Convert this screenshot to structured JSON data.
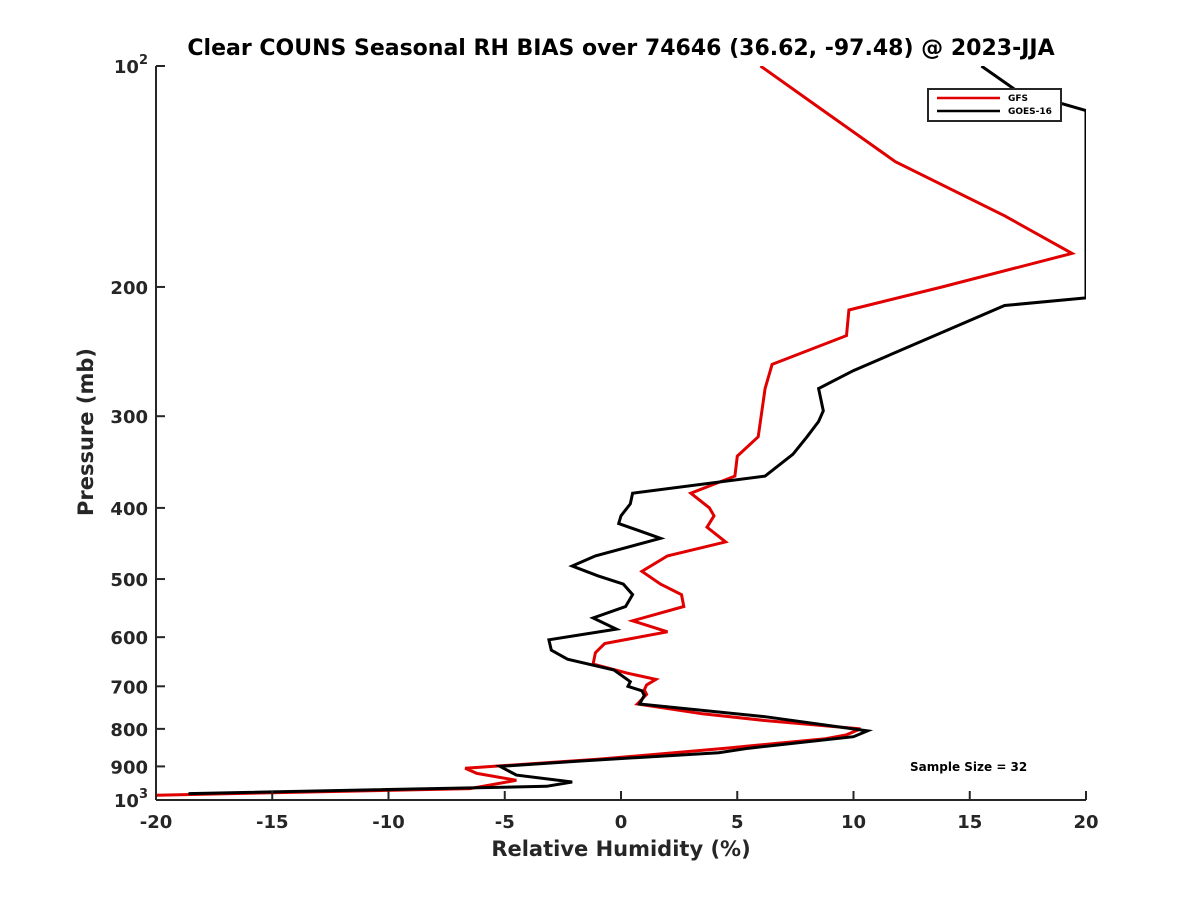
{
  "chart_data": {
    "type": "line",
    "title": "Clear COUNS Seasonal RH BIAS over 74646 (36.62, -97.48) @ 2023-JJA",
    "xlabel": "Relative Humidity (%)",
    "ylabel": "Pressure (mb)",
    "xlim": [
      -20,
      20
    ],
    "ylim": [
      100,
      1000
    ],
    "y_scale": "log",
    "y_reversed": true,
    "x_ticks": [
      "-20",
      "-15",
      "-10",
      "-5",
      "0",
      "5",
      "10",
      "15",
      "20"
    ],
    "y_ticks": [
      {
        "value": 100,
        "label": "10",
        "sup": "2"
      },
      {
        "value": 200,
        "label": "200",
        "sup": ""
      },
      {
        "value": 300,
        "label": "300",
        "sup": ""
      },
      {
        "value": 400,
        "label": "400",
        "sup": ""
      },
      {
        "value": 500,
        "label": "500",
        "sup": ""
      },
      {
        "value": 600,
        "label": "600",
        "sup": ""
      },
      {
        "value": 700,
        "label": "700",
        "sup": ""
      },
      {
        "value": 800,
        "label": "800",
        "sup": ""
      },
      {
        "value": 900,
        "label": "900",
        "sup": ""
      },
      {
        "value": 1000,
        "label": "10",
        "sup": "3"
      }
    ],
    "grid": false,
    "legend_position": "top-right",
    "annotation": "Sample Size = 32",
    "series": [
      {
        "name": "GFS",
        "color": "#e00000",
        "points": [
          [
            6.0,
            100
          ],
          [
            8.7,
            115
          ],
          [
            11.8,
            135
          ],
          [
            16.5,
            160
          ],
          [
            19.4,
            180
          ],
          [
            13.8,
            200
          ],
          [
            9.8,
            215
          ],
          [
            9.7,
            233
          ],
          [
            6.5,
            255
          ],
          [
            6.2,
            275
          ],
          [
            5.9,
            320
          ],
          [
            5.0,
            340
          ],
          [
            4.9,
            362
          ],
          [
            3.0,
            382
          ],
          [
            3.8,
            400
          ],
          [
            4.0,
            410
          ],
          [
            3.7,
            425
          ],
          [
            4.5,
            445
          ],
          [
            2.0,
            465
          ],
          [
            0.9,
            488
          ],
          [
            1.7,
            508
          ],
          [
            2.6,
            525
          ],
          [
            2.7,
            545
          ],
          [
            0.5,
            570
          ],
          [
            2.0,
            590
          ],
          [
            -0.7,
            612
          ],
          [
            -1.1,
            630
          ],
          [
            -1.2,
            653
          ],
          [
            0.3,
            672
          ],
          [
            1.5,
            685
          ],
          [
            1.1,
            697
          ],
          [
            1.0,
            708
          ],
          [
            1.1,
            718
          ],
          [
            0.7,
            740
          ],
          [
            3.5,
            763
          ],
          [
            6.3,
            780
          ],
          [
            10.3,
            800
          ],
          [
            9.7,
            815
          ],
          [
            8.8,
            825
          ],
          [
            4.5,
            850
          ],
          [
            -1.0,
            880
          ],
          [
            -6.7,
            905
          ],
          [
            -6.2,
            920
          ],
          [
            -4.5,
            940
          ],
          [
            -6.5,
            965
          ],
          [
            -20.0,
            985
          ]
        ]
      },
      {
        "name": "GOES-16",
        "color": "#000000",
        "points": [
          [
            15.5,
            100
          ],
          [
            17.0,
            108
          ],
          [
            20.0,
            115
          ],
          [
            20.0,
            207
          ],
          [
            16.5,
            212
          ],
          [
            13.9,
            230
          ],
          [
            10.0,
            260
          ],
          [
            8.5,
            275
          ],
          [
            8.7,
            295
          ],
          [
            8.5,
            305
          ],
          [
            8.0,
            320
          ],
          [
            7.4,
            338
          ],
          [
            6.2,
            362
          ],
          [
            0.5,
            382
          ],
          [
            0.4,
            395
          ],
          [
            0.0,
            410
          ],
          [
            -0.1,
            420
          ],
          [
            1.7,
            440
          ],
          [
            -1.1,
            465
          ],
          [
            -2.1,
            480
          ],
          [
            -1.0,
            495
          ],
          [
            0.1,
            508
          ],
          [
            0.5,
            525
          ],
          [
            0.2,
            545
          ],
          [
            -1.2,
            565
          ],
          [
            -0.2,
            585
          ],
          [
            -3.1,
            605
          ],
          [
            -3.0,
            625
          ],
          [
            -2.3,
            643
          ],
          [
            -0.3,
            665
          ],
          [
            0.4,
            690
          ],
          [
            0.3,
            700
          ],
          [
            0.9,
            710
          ],
          [
            1.0,
            720
          ],
          [
            0.8,
            740
          ],
          [
            6.2,
            770
          ],
          [
            10.6,
            805
          ],
          [
            10.0,
            820
          ],
          [
            5.5,
            850
          ],
          [
            4.2,
            862
          ],
          [
            -1.8,
            885
          ],
          [
            -5.2,
            900
          ],
          [
            -4.5,
            925
          ],
          [
            -2.1,
            945
          ],
          [
            -3.2,
            958
          ],
          [
            -18.6,
            980
          ]
        ]
      }
    ]
  }
}
